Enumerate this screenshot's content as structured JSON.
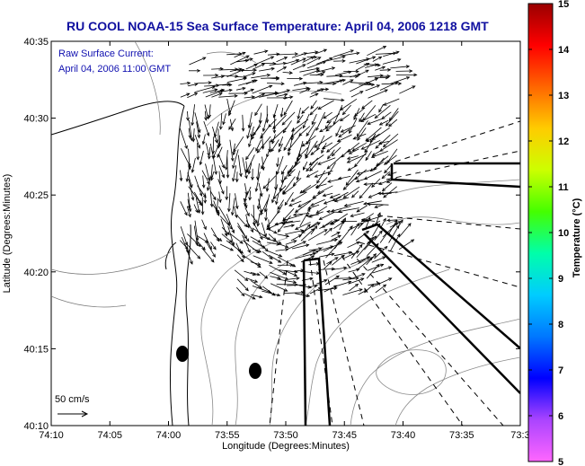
{
  "title": "RU COOL  NOAA-15  Sea Surface Temperature:  April 04, 2006 1218 GMT",
  "annotation": {
    "line1": "Raw Surface Current:",
    "line2": "April 04, 2006 11:00 GMT",
    "scale_label": "50 cm/s",
    "color": "#1010b0"
  },
  "chart_data": {
    "type": "map",
    "title": "RU COOL  NOAA-15  Sea Surface Temperature:  April 04, 2006 1218 GMT",
    "xlabel": "Longitude (Degrees:Minutes)",
    "ylabel": "Latitude (Degrees:Minutes)",
    "x_ticks": [
      "74:10",
      "74:05",
      "74:00",
      "73:55",
      "73:50",
      "73:45",
      "73:40",
      "73:35",
      "73:3"
    ],
    "y_ticks": [
      "40:10",
      "40:15",
      "40:20",
      "40:25",
      "40:30",
      "40:35"
    ],
    "xlim_minutes_west": [
      10,
      30
    ],
    "ylim_minutes_north": [
      10,
      35
    ],
    "colorbar": {
      "label": "Temperature (°C)",
      "ticks": [
        "5",
        "6",
        "7",
        "8",
        "9",
        "10",
        "11",
        "12",
        "13",
        "14",
        "15"
      ],
      "range": [
        5,
        15
      ],
      "colors": [
        "#ff66ff",
        "#aa44ff",
        "#0000ff",
        "#0077ff",
        "#00ccff",
        "#00ffaa",
        "#44ff00",
        "#ccff00",
        "#ffcc00",
        "#ff6600",
        "#ff0000",
        "#990000"
      ]
    },
    "reference_vector_cm_s": 50
  }
}
